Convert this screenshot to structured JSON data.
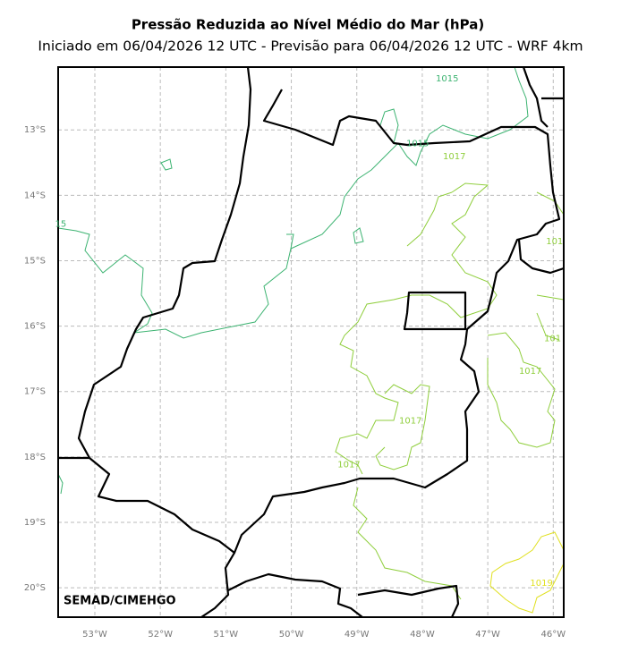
{
  "map": {
    "title": "Pressão Reduzida ao Nível Médio do Mar (hPa)",
    "subtitle": "Iniciado em 06/04/2026 12 UTC - Previsão para 06/04/2026 12 UTC - WRF 4km",
    "xlim": [
      -53.56,
      -45.84
    ],
    "ylim": [
      -20.45,
      -12.04
    ],
    "xticks": [
      {
        "value": -53,
        "label": "53°W"
      },
      {
        "value": -52,
        "label": "52°W"
      },
      {
        "value": -51,
        "label": "51°W"
      },
      {
        "value": -50,
        "label": "50°W"
      },
      {
        "value": -49,
        "label": "49°W"
      },
      {
        "value": -48,
        "label": "48°W"
      },
      {
        "value": -47,
        "label": "47°W"
      },
      {
        "value": -46,
        "label": "46°W"
      }
    ],
    "yticks": [
      {
        "value": -13,
        "label": "13°S"
      },
      {
        "value": -14,
        "label": "14°S"
      },
      {
        "value": -15,
        "label": "15°S"
      },
      {
        "value": -16,
        "label": "16°S"
      },
      {
        "value": -17,
        "label": "17°S"
      },
      {
        "value": -18,
        "label": "18°S"
      },
      {
        "value": -19,
        "label": "19°S"
      },
      {
        "value": -20,
        "label": "20°S"
      }
    ],
    "grid": true,
    "contour_labels": [
      {
        "text": "1015",
        "lon": -47.62,
        "lat": -12.22,
        "color": "#3cb371"
      },
      {
        "text": "1015",
        "lon": -48.07,
        "lat": -13.21,
        "color": "#3cb371"
      },
      {
        "text": "15",
        "lon": -53.52,
        "lat": -14.44,
        "color": "#3cb371"
      },
      {
        "text": "1017",
        "lon": -47.51,
        "lat": -13.41,
        "color": "#8fce3c"
      },
      {
        "text": "101",
        "lon": -45.98,
        "lat": -14.71,
        "color": "#8fce3c"
      },
      {
        "text": "101",
        "lon": -46.01,
        "lat": -16.19,
        "color": "#8fce3c"
      },
      {
        "text": "1017",
        "lon": -46.35,
        "lat": -16.69,
        "color": "#8fce3c"
      },
      {
        "text": "1017",
        "lon": -48.18,
        "lat": -17.45,
        "color": "#8fce3c"
      },
      {
        "text": "1017",
        "lon": -49.12,
        "lat": -18.12,
        "color": "#8fce3c"
      },
      {
        "text": "1019",
        "lon": -46.18,
        "lat": -19.93,
        "color": "#e0e020"
      }
    ],
    "credit": "SEMAD/CIMEHGO"
  }
}
